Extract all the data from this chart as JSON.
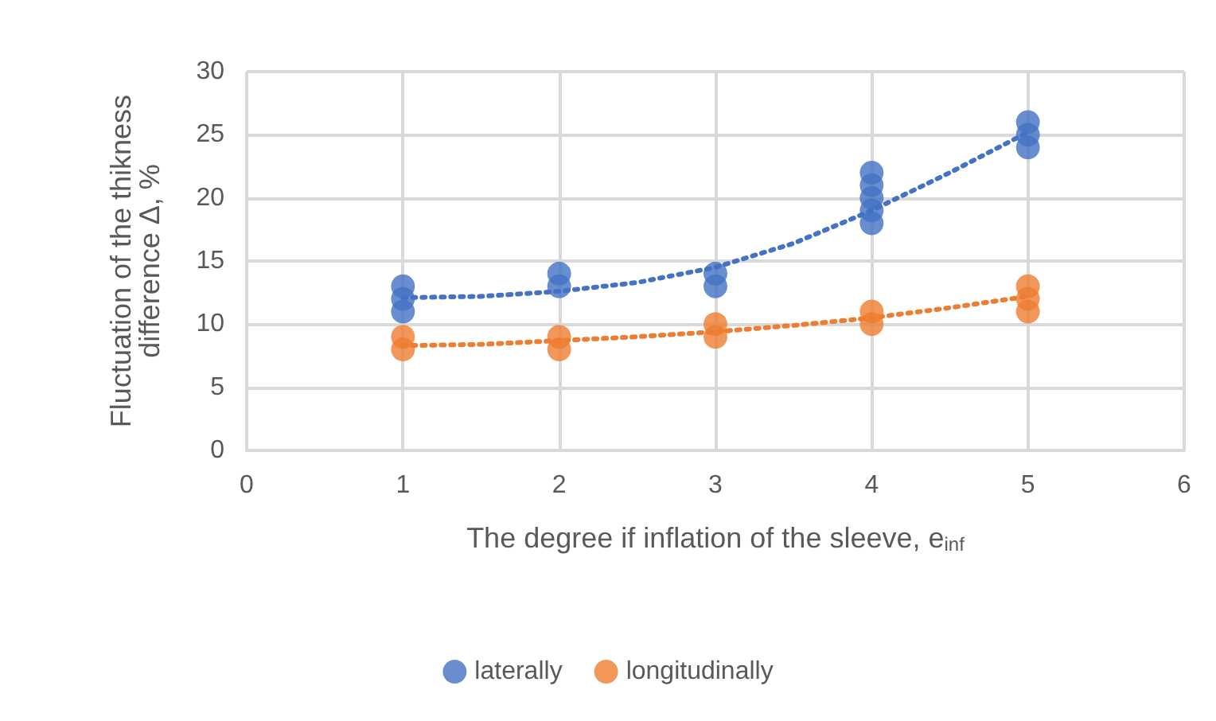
{
  "chart_data": {
    "type": "scatter",
    "xlabel": "The degree if inflation of the sleeve, e$_{inf}$",
    "ylabel": "Fluctuation of the thikness\ndifference Δ, %",
    "xlim": [
      0,
      6
    ],
    "xticks": [
      0,
      1,
      2,
      3,
      4,
      5,
      6
    ],
    "ylim": [
      0,
      30
    ],
    "yticks": [
      0,
      5,
      10,
      15,
      20,
      25,
      30
    ],
    "grid": true,
    "legend": "bottom",
    "marker": "circle",
    "series": [
      {
        "name": "laterally",
        "color": "#4472c4",
        "x": [
          1,
          1,
          1,
          2,
          2,
          3,
          3,
          4,
          4,
          4,
          4,
          4,
          5,
          5,
          5
        ],
        "values": [
          11,
          12,
          13,
          13,
          14,
          13,
          14,
          18,
          19,
          20,
          21,
          22,
          24,
          25,
          26
        ]
      },
      {
        "name": "longitudinally",
        "color": "#ed7d31",
        "x": [
          1,
          1,
          2,
          2,
          3,
          3,
          4,
          4,
          5,
          5,
          5
        ],
        "values": [
          8,
          9,
          8,
          9,
          9,
          10,
          10,
          11,
          11,
          12,
          13
        ]
      },
      {
        "type": "line",
        "color": "#4472c4",
        "line_style": "dotted",
        "marker": "none",
        "x": [
          1,
          1.5,
          2,
          2.5,
          3,
          3.5,
          4,
          4.5,
          5
        ],
        "values": [
          12.1,
          12.2,
          12.6,
          13.3,
          14.5,
          16.4,
          19,
          22,
          25.2
        ]
      },
      {
        "type": "line",
        "color": "#ed7d31",
        "line_style": "dotted",
        "marker": "none",
        "x": [
          1,
          1.5,
          2,
          2.5,
          3,
          3.5,
          4,
          4.5,
          5
        ],
        "values": [
          8.3,
          8.4,
          8.7,
          9.0,
          9.4,
          9.9,
          10.5,
          11.3,
          12.2
        ]
      }
    ]
  }
}
